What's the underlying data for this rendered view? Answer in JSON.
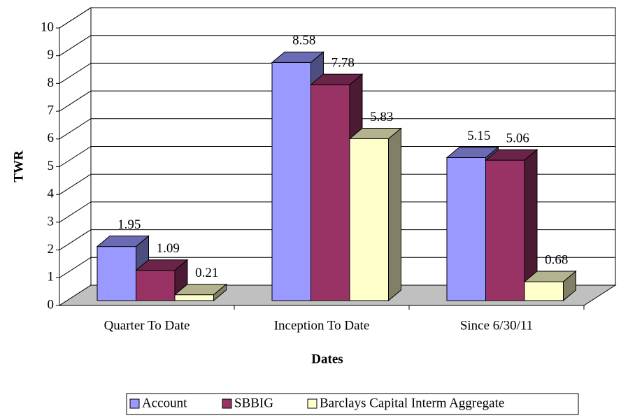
{
  "chart_data": {
    "type": "bar3d",
    "x_label": "Dates",
    "y_label": "TWR",
    "categories": [
      "Quarter To Date",
      "Inception To Date",
      "Since 6/30/11"
    ],
    "series": [
      {
        "name": "Account",
        "color": "#9999ff",
        "values": [
          1.95,
          8.58,
          5.15
        ]
      },
      {
        "name": "SBBIG",
        "color": "#993366",
        "values": [
          1.09,
          7.78,
          5.06
        ]
      },
      {
        "name": "Barclays Capital Interm Aggregate",
        "color": "#ffffcc",
        "values": [
          0.21,
          5.83,
          0.68
        ]
      }
    ],
    "ylim": [
      0,
      10
    ],
    "yticks": [
      0,
      1,
      2,
      3,
      4,
      5,
      6,
      7,
      8,
      9,
      10
    ],
    "grid": true,
    "legend": "bottom"
  }
}
